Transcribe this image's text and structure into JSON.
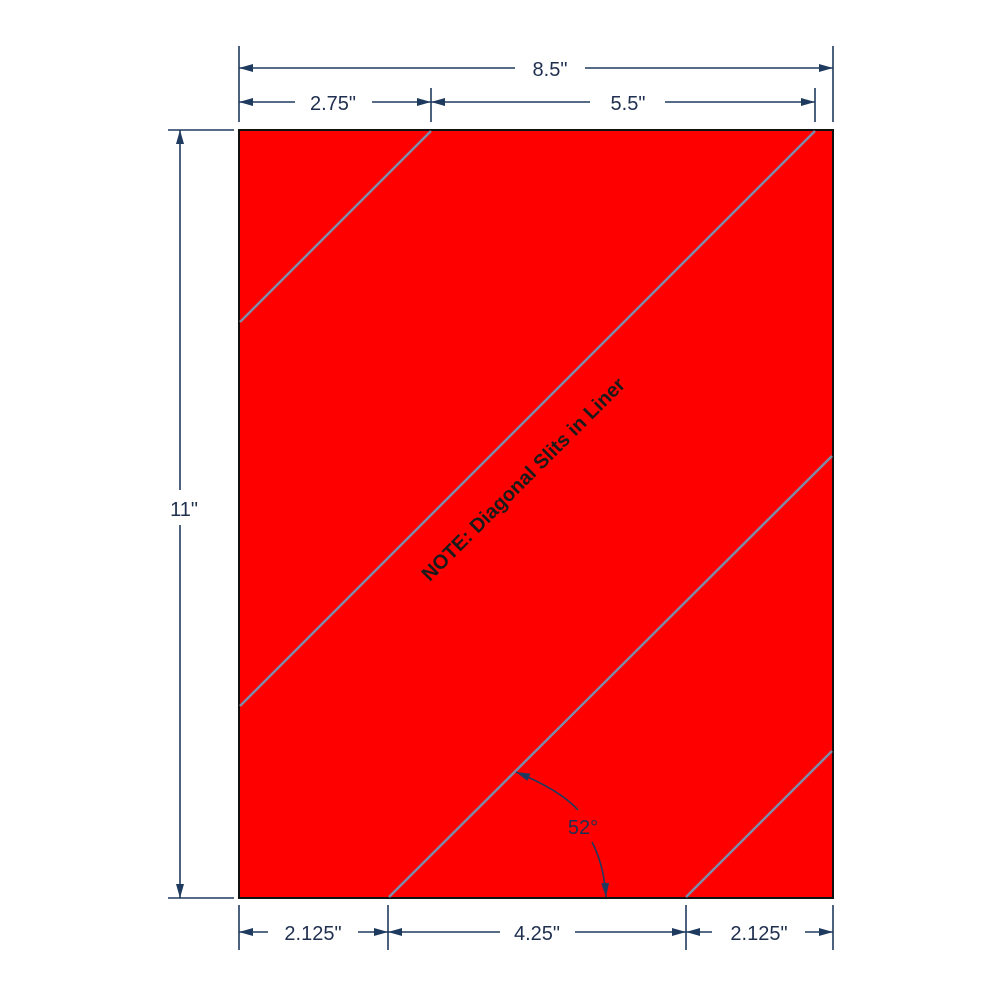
{
  "colors": {
    "sheet": "#ff0000",
    "dimension": "#1f3a5f",
    "slit": "#7f8aa6"
  },
  "dimensions": {
    "overall_width": "8.5\"",
    "top_left": "2.75\"",
    "top_right": "5.5\"",
    "height": "11\"",
    "bottom_left": "2.125\"",
    "bottom_middle": "4.25\"",
    "bottom_right": "2.125\"",
    "angle": "52°"
  },
  "note": "NOTE:  Diagonal Slits in Liner"
}
